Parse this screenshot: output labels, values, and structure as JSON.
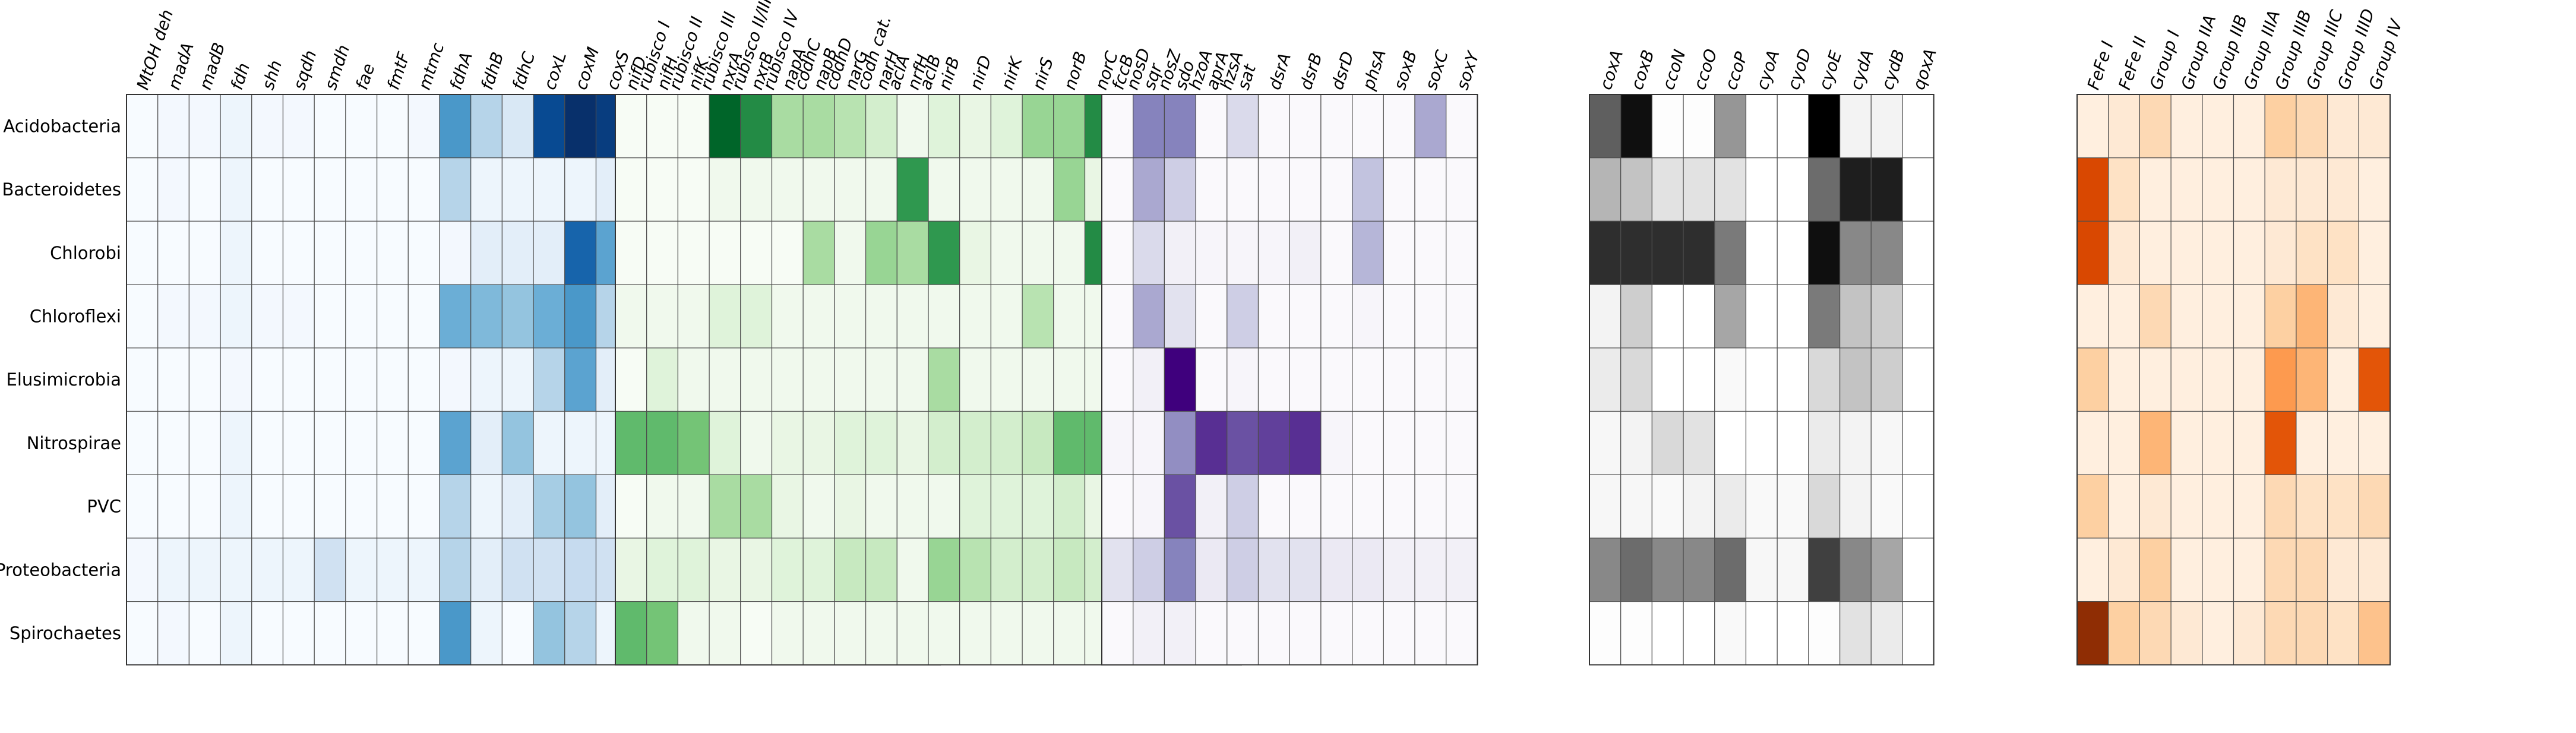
{
  "chart_data": {
    "type": "heatmap",
    "rows": [
      "Acidobacteria",
      "Bacteroidetes",
      "Chlorobi",
      "Chloroflexi",
      "Elusimicrobia",
      "Nitrospirae",
      "PVC",
      "Proteobacteria",
      "Spirochaetes"
    ],
    "panels": [
      {
        "colormap": "Blues",
        "columns": [
          "MtOH deh",
          "madA",
          "madB",
          "fdh",
          "shh",
          "sqdh",
          "smdh",
          "fae",
          "fmtF",
          "mtmc",
          "fdhA",
          "fdhB",
          "fdhC",
          "coxL",
          "coxM",
          "coxS",
          "rubisco I",
          "rubisco II",
          "rubisco III",
          "rubisco II/III",
          "rubisco IV",
          "codhC",
          "codhD",
          "codh cat.",
          "aclA",
          "aclB"
        ],
        "values": [
          [
            0.0,
            0.02,
            0.02,
            0.05,
            0.02,
            0.02,
            0.0,
            0.0,
            0.0,
            0.02,
            0.6,
            0.3,
            0.15,
            0.9,
            1.0,
            0.95,
            0.0,
            0.02,
            0.02,
            0.05,
            0.15,
            0.1,
            0.05,
            0.05,
            0.02,
            0.05
          ],
          [
            0.0,
            0.02,
            0.0,
            0.05,
            0.0,
            0.0,
            0.0,
            0.0,
            0.0,
            0.0,
            0.3,
            0.05,
            0.05,
            0.05,
            0.05,
            0.1,
            0.0,
            0.0,
            0.0,
            0.05,
            0.3,
            0.05,
            0.05,
            0.05,
            0.02,
            0.02
          ],
          [
            0.0,
            0.0,
            0.0,
            0.05,
            0.0,
            0.0,
            0.0,
            0.0,
            0.0,
            0.0,
            0.02,
            0.1,
            0.1,
            0.1,
            0.8,
            0.55,
            0.0,
            0.0,
            0.0,
            0.05,
            0.1,
            0.1,
            0.1,
            0.05,
            0.02,
            0.02
          ],
          [
            0.0,
            0.02,
            0.02,
            0.05,
            0.02,
            0.02,
            0.0,
            0.0,
            0.0,
            0.0,
            0.5,
            0.45,
            0.4,
            0.5,
            0.6,
            0.3,
            0.0,
            0.05,
            0.05,
            0.1,
            0.35,
            0.55,
            0.3,
            0.7,
            0.05,
            0.05
          ],
          [
            0.0,
            0.0,
            0.0,
            0.02,
            0.0,
            0.0,
            0.0,
            0.0,
            0.0,
            0.0,
            0.02,
            0.05,
            0.05,
            0.3,
            0.55,
            0.1,
            0.0,
            0.0,
            0.0,
            0.05,
            0.45,
            0.1,
            0.1,
            0.15,
            0.3,
            0.3
          ],
          [
            0.0,
            0.0,
            0.0,
            0.05,
            0.0,
            0.0,
            0.0,
            0.0,
            0.0,
            0.0,
            0.55,
            0.1,
            0.4,
            0.05,
            0.05,
            0.05,
            0.0,
            0.0,
            0.0,
            0.05,
            0.45,
            0.3,
            0.3,
            0.6,
            0.35,
            0.05
          ],
          [
            0.0,
            0.0,
            0.0,
            0.05,
            0.0,
            0.0,
            0.0,
            0.0,
            0.0,
            0.0,
            0.3,
            0.05,
            0.1,
            0.35,
            0.4,
            0.1,
            0.0,
            0.0,
            0.0,
            0.05,
            0.3,
            0.3,
            0.35,
            0.05,
            0.1,
            0.05
          ],
          [
            0.02,
            0.05,
            0.05,
            0.05,
            0.05,
            0.05,
            0.2,
            0.05,
            0.05,
            0.05,
            0.3,
            0.1,
            0.2,
            0.2,
            0.25,
            0.2,
            0.05,
            0.05,
            0.05,
            0.15,
            0.5,
            0.2,
            0.15,
            0.2,
            0.1,
            0.1
          ],
          [
            0.0,
            0.02,
            0.0,
            0.05,
            0.0,
            0.0,
            0.0,
            0.0,
            0.0,
            0.0,
            0.6,
            0.05,
            0.0,
            0.4,
            0.3,
            0.05,
            0.0,
            0.0,
            0.0,
            0.05,
            0.15,
            0.05,
            0.15,
            0.05,
            0.05,
            0.02
          ]
        ]
      },
      {
        "colormap": "Greens",
        "columns": [
          "nifD",
          "nifH",
          "nifK",
          "nxrA",
          "nxrB",
          "napA",
          "napB",
          "narG",
          "narH",
          "nrfH",
          "nirB",
          "nirD",
          "nirK",
          "nirS",
          "norB",
          "norC",
          "nosD",
          "nosZ",
          "hzoA",
          "hzsA"
        ],
        "values": [
          [
            0.0,
            0.0,
            0.0,
            0.9,
            0.75,
            0.35,
            0.35,
            0.3,
            0.2,
            0.05,
            0.15,
            0.1,
            0.15,
            0.4,
            0.4,
            0.75,
            0.15,
            0.15,
            0.05,
            0.05
          ],
          [
            0.0,
            0.0,
            0.0,
            0.05,
            0.05,
            0.05,
            0.05,
            0.05,
            0.05,
            0.7,
            0.05,
            0.05,
            0.05,
            0.05,
            0.4,
            0.1,
            0.1,
            0.05,
            0.0,
            0.0
          ],
          [
            0.0,
            0.0,
            0.0,
            0.0,
            0.0,
            0.0,
            0.35,
            0.05,
            0.4,
            0.35,
            0.7,
            0.1,
            0.05,
            0.05,
            0.05,
            0.75,
            0.95,
            0.85,
            0.0,
            0.0
          ],
          [
            0.05,
            0.05,
            0.05,
            0.15,
            0.15,
            0.05,
            0.05,
            0.05,
            0.05,
            0.05,
            0.05,
            0.05,
            0.05,
            0.3,
            0.05,
            0.05,
            0.05,
            0.05,
            0.0,
            0.0
          ],
          [
            0.0,
            0.15,
            0.05,
            0.05,
            0.05,
            0.05,
            0.05,
            0.05,
            0.05,
            0.05,
            0.35,
            0.05,
            0.05,
            0.05,
            0.05,
            0.05,
            0.05,
            0.05,
            0.0,
            0.0
          ],
          [
            0.55,
            0.55,
            0.5,
            0.15,
            0.05,
            0.1,
            0.1,
            0.15,
            0.15,
            0.1,
            0.2,
            0.2,
            0.2,
            0.25,
            0.55,
            0.55,
            0.1,
            0.05,
            0.0,
            0.0
          ],
          [
            0.0,
            0.05,
            0.05,
            0.35,
            0.35,
            0.1,
            0.05,
            0.1,
            0.05,
            0.05,
            0.05,
            0.15,
            0.15,
            0.15,
            0.2,
            0.1,
            0.05,
            0.05,
            0.2,
            0.05
          ],
          [
            0.1,
            0.15,
            0.15,
            0.1,
            0.1,
            0.15,
            0.15,
            0.25,
            0.25,
            0.05,
            0.4,
            0.3,
            0.2,
            0.2,
            0.25,
            0.2,
            0.1,
            0.1,
            0.05,
            0.05
          ],
          [
            0.55,
            0.5,
            0.05,
            0.05,
            0.0,
            0.05,
            0.05,
            0.05,
            0.05,
            0.05,
            0.05,
            0.05,
            0.05,
            0.05,
            0.05,
            0.05,
            0.05,
            0.05,
            0.0,
            0.0
          ]
        ]
      },
      {
        "colormap": "Purples",
        "columns": [
          "fccB",
          "sqr",
          "sdo",
          "aprA",
          "sat",
          "dsrA",
          "dsrB",
          "dsrD",
          "phsA",
          "soxB",
          "soxC",
          "soxY"
        ],
        "values": [
          [
            0.02,
            0.6,
            0.6,
            0.02,
            0.25,
            0.02,
            0.02,
            0.02,
            0.02,
            0.02,
            0.45,
            0.02
          ],
          [
            0.02,
            0.45,
            0.3,
            0.02,
            0.02,
            0.02,
            0.02,
            0.02,
            0.35,
            0.02,
            0.02,
            0.02
          ],
          [
            0.02,
            0.25,
            0.1,
            0.05,
            0.05,
            0.05,
            0.1,
            0.02,
            0.4,
            0.02,
            0.02,
            0.02
          ],
          [
            0.02,
            0.45,
            0.2,
            0.02,
            0.3,
            0.02,
            0.02,
            0.02,
            0.05,
            0.02,
            0.02,
            0.02
          ],
          [
            0.02,
            0.1,
            1.0,
            0.02,
            0.05,
            0.02,
            0.02,
            0.02,
            0.02,
            0.02,
            0.02,
            0.02
          ],
          [
            0.05,
            0.05,
            0.55,
            0.85,
            0.75,
            0.8,
            0.85,
            0.05,
            0.02,
            0.02,
            0.02,
            0.02
          ],
          [
            0.02,
            0.05,
            0.75,
            0.1,
            0.3,
            0.02,
            0.02,
            0.02,
            0.02,
            0.02,
            0.02,
            0.02
          ],
          [
            0.2,
            0.3,
            0.6,
            0.15,
            0.3,
            0.2,
            0.2,
            0.15,
            0.15,
            0.1,
            0.1,
            0.1
          ],
          [
            0.02,
            0.1,
            0.1,
            0.02,
            0.02,
            0.02,
            0.02,
            0.02,
            0.02,
            0.02,
            0.02,
            0.02
          ]
        ]
      },
      {
        "colormap": "Greys",
        "columns": [
          "coxA",
          "coxB",
          "ccoN",
          "ccoO",
          "ccoP",
          "cyoA",
          "cyoD",
          "cyoE",
          "cydA",
          "cydB",
          "qoxA"
        ],
        "values": [
          [
            0.7,
            0.95,
            0.02,
            0.02,
            0.5,
            0.0,
            0.0,
            1.0,
            0.1,
            0.1,
            0.0
          ],
          [
            0.4,
            0.35,
            0.2,
            0.2,
            0.2,
            0.0,
            0.0,
            0.65,
            0.9,
            0.9,
            0.0
          ],
          [
            0.85,
            0.85,
            0.85,
            0.85,
            0.6,
            0.0,
            0.0,
            0.95,
            0.55,
            0.55,
            0.0
          ],
          [
            0.1,
            0.3,
            0.0,
            0.0,
            0.45,
            0.0,
            0.0,
            0.6,
            0.35,
            0.3,
            0.0
          ],
          [
            0.15,
            0.25,
            0.0,
            0.0,
            0.05,
            0.0,
            0.0,
            0.25,
            0.35,
            0.3,
            0.0
          ],
          [
            0.07,
            0.1,
            0.25,
            0.2,
            0.0,
            0.0,
            0.0,
            0.15,
            0.1,
            0.07,
            0.0
          ],
          [
            0.07,
            0.07,
            0.05,
            0.1,
            0.15,
            0.05,
            0.05,
            0.25,
            0.1,
            0.05,
            0.0
          ],
          [
            0.55,
            0.65,
            0.55,
            0.55,
            0.65,
            0.07,
            0.07,
            0.8,
            0.55,
            0.45,
            0.0
          ],
          [
            0.02,
            0.02,
            0.0,
            0.0,
            0.05,
            0.0,
            0.0,
            0.02,
            0.2,
            0.15,
            0.0
          ]
        ]
      },
      {
        "colormap": "Oranges",
        "columns": [
          "FeFe I",
          "FeFe II",
          "Group I",
          "Group IIA",
          "Group IIB",
          "Group IIIA",
          "Group IIIB",
          "Group IIIC",
          "Group IIID",
          "Group IV"
        ],
        "values": [
          [
            0.05,
            0.1,
            0.2,
            0.05,
            0.05,
            0.05,
            0.25,
            0.2,
            0.1,
            0.1
          ],
          [
            0.75,
            0.15,
            0.05,
            0.05,
            0.05,
            0.05,
            0.1,
            0.1,
            0.1,
            0.05
          ],
          [
            0.75,
            0.1,
            0.05,
            0.05,
            0.05,
            0.05,
            0.1,
            0.15,
            0.15,
            0.05
          ],
          [
            0.05,
            0.05,
            0.2,
            0.05,
            0.05,
            0.05,
            0.25,
            0.35,
            0.1,
            0.05
          ],
          [
            0.25,
            0.05,
            0.05,
            0.05,
            0.05,
            0.05,
            0.45,
            0.35,
            0.05,
            0.7
          ],
          [
            0.05,
            0.05,
            0.35,
            0.05,
            0.05,
            0.05,
            0.7,
            0.05,
            0.05,
            0.05
          ],
          [
            0.25,
            0.05,
            0.1,
            0.05,
            0.05,
            0.05,
            0.2,
            0.15,
            0.15,
            0.2
          ],
          [
            0.05,
            0.1,
            0.25,
            0.05,
            0.05,
            0.05,
            0.2,
            0.2,
            0.1,
            0.1
          ],
          [
            0.95,
            0.25,
            0.2,
            0.1,
            0.05,
            0.1,
            0.2,
            0.2,
            0.15,
            0.3
          ]
        ]
      }
    ],
    "grid": true,
    "legend": "none"
  }
}
